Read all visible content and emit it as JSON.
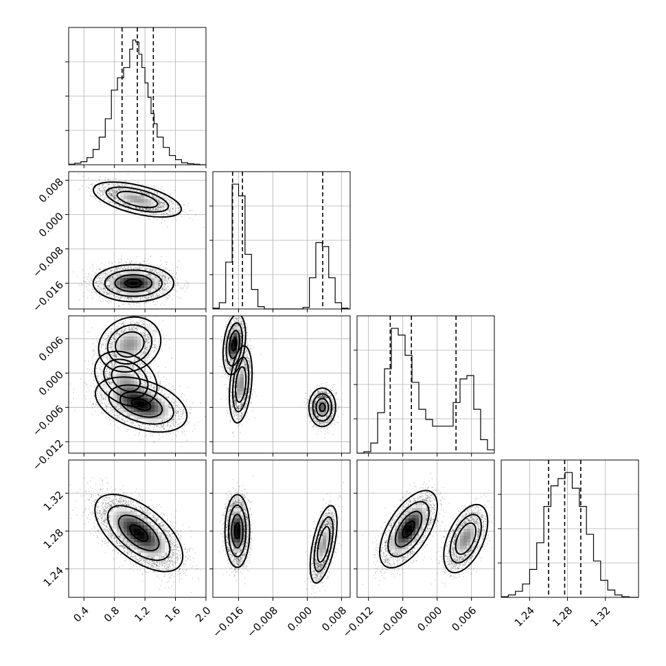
{
  "chart_data": {
    "type": "corner",
    "title": "",
    "grid": true,
    "parameters": [
      {
        "xlim": [
          0.2,
          2.0
        ],
        "xticks": [
          0.4,
          0.8,
          1.2,
          1.6,
          2.0
        ],
        "xtick_labels": [
          "0.4",
          "0.8",
          "1.2",
          "1.6",
          "2.0"
        ],
        "ticks": [
          0.4,
          0.8,
          1.2,
          1.6,
          2.0
        ],
        "tick_labels": [
          "0.4",
          "0.8",
          "1.2",
          "1.6",
          "2.0"
        ],
        "lim": [
          0.2,
          2.0
        ],
        "quantiles": [
          0.9,
          1.1,
          1.31
        ],
        "hist_edges": [
          0.2,
          0.28,
          0.36,
          0.44,
          0.52,
          0.6,
          0.68,
          0.76,
          0.84,
          0.92,
          1.0,
          1.04,
          1.08,
          1.12,
          1.16,
          1.2,
          1.24,
          1.28,
          1.32,
          1.36,
          1.44,
          1.52,
          1.6,
          1.68,
          1.76,
          1.84,
          1.92,
          2.0
        ],
        "hist_counts": [
          0.5,
          1.5,
          3,
          7,
          15,
          27,
          45,
          73,
          85,
          95,
          113,
          122,
          120,
          108,
          95,
          80,
          66,
          50,
          40,
          27,
          17,
          9,
          5,
          2,
          1,
          0.5,
          0
        ]
      },
      {
        "lim": [
          -0.022,
          0.01
        ],
        "ticks": [
          -0.016,
          -0.008,
          0.0,
          0.008
        ],
        "tick_labels": [
          "−0.016",
          "−0.008",
          "0.000",
          "0.008"
        ],
        "quantiles": [
          -0.0174,
          -0.0151,
          0.0036
        ],
        "hist_edges": [
          -0.022,
          -0.0205,
          -0.019,
          -0.0175,
          -0.016,
          -0.0145,
          -0.013,
          -0.0115,
          -0.01,
          -0.0085,
          -0.007,
          -0.0055,
          -0.004,
          -0.0025,
          -0.001,
          0.0005,
          0.002,
          0.0035,
          0.005,
          0.0065,
          0.008,
          0.0095,
          0.01
        ],
        "hist_counts": [
          1,
          8,
          60,
          160,
          145,
          70,
          25,
          3,
          0,
          0,
          0,
          0,
          0,
          0,
          2,
          40,
          85,
          80,
          40,
          8,
          1,
          0
        ]
      },
      {
        "lim": [
          -0.014,
          0.01
        ],
        "ticks": [
          -0.012,
          -0.006,
          0.0,
          0.006
        ],
        "tick_labels": [
          "−0.012",
          "−0.006",
          "0.000",
          "0.006"
        ],
        "quantiles": [
          -0.0082,
          -0.0045,
          0.0033
        ],
        "hist_edges": [
          -0.014,
          -0.0128,
          -0.0116,
          -0.0104,
          -0.0092,
          -0.008,
          -0.0068,
          -0.0056,
          -0.0044,
          -0.0032,
          -0.002,
          -0.0008,
          0.0004,
          0.0016,
          0.0028,
          0.004,
          0.0052,
          0.0064,
          0.0076,
          0.0088,
          0.01
        ],
        "hist_counts": [
          0,
          2,
          15,
          60,
          125,
          185,
          175,
          145,
          105,
          65,
          50,
          40,
          40,
          40,
          75,
          110,
          115,
          65,
          20,
          5
        ]
      },
      {
        "lim": [
          1.21,
          1.355
        ],
        "ticks": [
          1.24,
          1.28,
          1.32
        ],
        "tick_labels": [
          "1.24",
          "1.28",
          "1.32"
        ],
        "quantiles": [
          1.26,
          1.277,
          1.294
        ],
        "hist_edges": [
          1.21,
          1.2175,
          1.225,
          1.2325,
          1.24,
          1.2475,
          1.255,
          1.2625,
          1.27,
          1.2775,
          1.285,
          1.2925,
          1.3,
          1.3075,
          1.315,
          1.3225,
          1.33,
          1.3375,
          1.345,
          1.355
        ],
        "hist_counts": [
          0.5,
          2,
          5,
          11,
          23,
          45,
          75,
          92,
          98,
          103,
          90,
          75,
          52,
          30,
          14,
          6,
          2,
          0.5,
          0
        ]
      }
    ],
    "pairs": [
      {
        "row": 1,
        "col": 0,
        "clusters": [
          {
            "mx": 1.1,
            "my": 0.0035,
            "sx": 0.24,
            "sy": 0.0017,
            "rho": -0.55,
            "n": 2400,
            "peak": 0.55
          },
          {
            "mx": 1.05,
            "my": -0.016,
            "sx": 0.22,
            "sy": 0.0018,
            "rho": 0.0,
            "n": 4600,
            "peak": 1.0
          }
        ]
      },
      {
        "row": 2,
        "col": 0,
        "clusters": [
          {
            "mx": 1.0,
            "my": 0.005,
            "sx": 0.17,
            "sy": 0.002,
            "rho": 0.15,
            "n": 2100,
            "peak": 0.6
          },
          {
            "mx": 0.95,
            "my": -0.001,
            "sx": 0.17,
            "sy": 0.002,
            "rho": -0.3,
            "n": 1300,
            "peak": 0.45
          },
          {
            "mx": 1.15,
            "my": -0.0055,
            "sx": 0.25,
            "sy": 0.002,
            "rho": -0.4,
            "n": 3600,
            "peak": 1.0
          }
        ]
      },
      {
        "row": 2,
        "col": 1,
        "clusters": [
          {
            "mx": -0.017,
            "my": 0.005,
            "sx": 0.0011,
            "sy": 0.0022,
            "rho": 0.3,
            "n": 2300,
            "peak": 1.0
          },
          {
            "mx": -0.0155,
            "my": -0.002,
            "sx": 0.0011,
            "sy": 0.0028,
            "rho": 0.3,
            "n": 2200,
            "peak": 0.6
          },
          {
            "mx": 0.0035,
            "my": -0.006,
            "sx": 0.0013,
            "sy": 0.0014,
            "rho": 0.0,
            "n": 2500,
            "peak": 0.75
          }
        ]
      },
      {
        "row": 3,
        "col": 0,
        "clusters": [
          {
            "mx": 1.12,
            "my": 1.278,
            "sx": 0.24,
            "sy": 0.017,
            "rho": -0.6,
            "n": 7000,
            "peak": 1.0
          }
        ]
      },
      {
        "row": 3,
        "col": 1,
        "clusters": [
          {
            "mx": -0.0163,
            "my": 1.28,
            "sx": 0.0012,
            "sy": 0.016,
            "rho": 0.0,
            "n": 4500,
            "peak": 1.0
          },
          {
            "mx": 0.0038,
            "my": 1.266,
            "sx": 0.0013,
            "sy": 0.017,
            "rho": 0.55,
            "n": 2500,
            "peak": 0.55
          }
        ]
      },
      {
        "row": 3,
        "col": 2,
        "clusters": [
          {
            "mx": -0.005,
            "my": 1.282,
            "sx": 0.0021,
            "sy": 0.017,
            "rho": 0.6,
            "n": 4300,
            "peak": 1.0
          },
          {
            "mx": 0.005,
            "my": 1.272,
            "sx": 0.0016,
            "sy": 0.015,
            "rho": 0.5,
            "n": 2700,
            "peak": 0.6
          }
        ]
      }
    ]
  }
}
